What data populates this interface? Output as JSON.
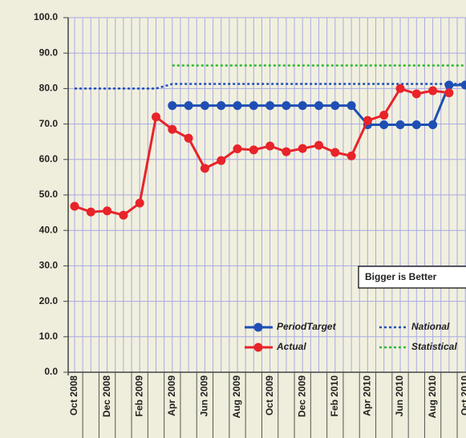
{
  "chart_data": {
    "type": "line",
    "categories": [
      "Oct 2008",
      null,
      "Dec 2008",
      null,
      "Feb 2009",
      null,
      "Apr 2009",
      null,
      "Jun 2009",
      null,
      "Aug 2009",
      null,
      "Oct 2009",
      null,
      "Dec 2009",
      null,
      "Feb 2010",
      null,
      "Apr 2010",
      null,
      "Jun 2010",
      null,
      "Aug 2010",
      null,
      "Oct 2010"
    ],
    "series": [
      {
        "name": "PeriodTarget",
        "color": "#1f4fb4",
        "dash": "solid",
        "marker": true,
        "values": [
          null,
          null,
          null,
          null,
          null,
          null,
          75.2,
          75.2,
          75.2,
          75.2,
          75.2,
          75.2,
          75.2,
          75.2,
          75.2,
          75.2,
          75.2,
          75.2,
          69.8,
          69.8,
          69.8,
          69.8,
          69.8,
          81,
          81
        ]
      },
      {
        "name": "National",
        "color": "#1f4fb4",
        "dash": "dotted",
        "marker": false,
        "values": [
          80,
          80,
          80,
          80,
          80,
          80,
          81.3,
          81.3,
          81.3,
          81.3,
          81.3,
          81.3,
          81.3,
          81.3,
          81.3,
          81.3,
          81.3,
          81.3,
          81.3,
          81.3,
          81.3,
          81.3,
          81.3,
          81.3,
          81.3
        ]
      },
      {
        "name": "Actual",
        "color": "#e8232a",
        "dash": "solid",
        "marker": true,
        "values": [
          46.8,
          45.2,
          45.5,
          44.3,
          47.7,
          72,
          68.5,
          66,
          57.5,
          59.7,
          63,
          62.7,
          63.8,
          62.2,
          63.1,
          64,
          62,
          61,
          71,
          72.5,
          80,
          78.5,
          79.4,
          78.8,
          null
        ]
      },
      {
        "name": "Statistical",
        "color": "#2db82d",
        "dash": "dotted",
        "marker": false,
        "values": [
          null,
          null,
          null,
          null,
          null,
          null,
          86.5,
          86.5,
          86.5,
          86.5,
          86.5,
          86.5,
          86.5,
          86.5,
          86.5,
          86.5,
          86.5,
          86.5,
          86.5,
          86.5,
          86.5,
          86.5,
          86.5,
          86.5,
          86.5
        ]
      }
    ],
    "annotation": "Bigger is Better",
    "ylim": [
      0,
      100
    ],
    "yticks": [
      {
        "value": 0,
        "label": "0.0"
      },
      {
        "value": 10,
        "label": "10.0"
      },
      {
        "value": 20,
        "label": "20.0"
      },
      {
        "value": 30,
        "label": "30.0"
      },
      {
        "value": 40,
        "label": "40.0"
      },
      {
        "value": 50,
        "label": "50.0"
      },
      {
        "value": 60,
        "label": "60.0"
      },
      {
        "value": 70,
        "label": "70.0"
      },
      {
        "value": 80,
        "label": "80.0"
      },
      {
        "value": 90,
        "label": "90.0"
      },
      {
        "value": 100,
        "label": "100.0"
      }
    ],
    "grid": true
  }
}
